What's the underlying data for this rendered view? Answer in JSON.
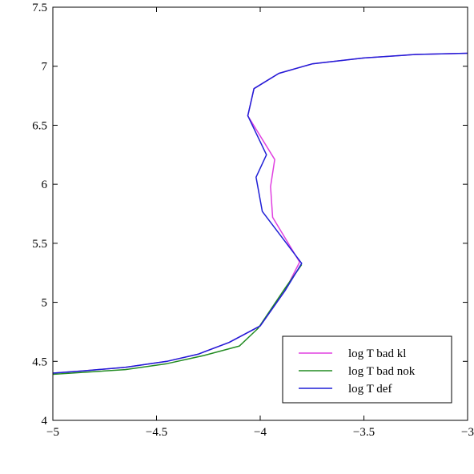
{
  "chart_data": {
    "type": "line",
    "title": "",
    "xlabel": "",
    "ylabel": "",
    "xlim": [
      -5,
      -3
    ],
    "ylim": [
      4,
      7.5
    ],
    "x_ticks": [
      -5,
      -4.5,
      -4,
      -3.5,
      -3
    ],
    "x_tick_labels": [
      "−5",
      "−4.5",
      "−4",
      "−3.5",
      "−3"
    ],
    "y_ticks": [
      4,
      4.5,
      5,
      5.5,
      6,
      6.5,
      7,
      7.5
    ],
    "y_tick_labels": [
      "4",
      "4.5",
      "5",
      "5.5",
      "6",
      "6.5",
      "7",
      "7.5"
    ],
    "grid": false,
    "legend_position": "bottom-right",
    "series": [
      {
        "name": "log T bad kl",
        "color": "#e040e0",
        "points": [
          [
            -5.0,
            4.4
          ],
          [
            -4.85,
            4.42
          ],
          [
            -4.65,
            4.45
          ],
          [
            -4.45,
            4.5
          ],
          [
            -4.3,
            4.56
          ],
          [
            -4.15,
            4.66
          ],
          [
            -4.0,
            4.8
          ],
          [
            -3.88,
            5.1
          ],
          [
            -3.81,
            5.34
          ],
          [
            -3.94,
            5.72
          ],
          [
            -3.95,
            5.98
          ],
          [
            -3.93,
            6.21
          ],
          [
            -4.06,
            6.58
          ],
          [
            -4.03,
            6.81
          ],
          [
            -3.91,
            6.94
          ],
          [
            -3.75,
            7.02
          ],
          [
            -3.5,
            7.07
          ],
          [
            -3.25,
            7.1
          ],
          [
            -3.0,
            7.11
          ]
        ]
      },
      {
        "name": "log T bad nok",
        "color": "#228b22",
        "points": [
          [
            -5.0,
            4.39
          ],
          [
            -4.65,
            4.43
          ],
          [
            -4.45,
            4.48
          ],
          [
            -4.27,
            4.55
          ],
          [
            -4.1,
            4.63
          ],
          [
            -4.01,
            4.78
          ],
          [
            -3.88,
            5.12
          ],
          [
            -3.8,
            5.32
          ]
        ]
      },
      {
        "name": "log T def",
        "color": "#1f1fd6",
        "points": [
          [
            -5.0,
            4.4
          ],
          [
            -4.85,
            4.42
          ],
          [
            -4.65,
            4.45
          ],
          [
            -4.45,
            4.5
          ],
          [
            -4.3,
            4.56
          ],
          [
            -4.15,
            4.66
          ],
          [
            -4.0,
            4.8
          ],
          [
            -3.88,
            5.1
          ],
          [
            -3.8,
            5.33
          ],
          [
            -3.99,
            5.77
          ],
          [
            -4.02,
            6.06
          ],
          [
            -3.97,
            6.25
          ],
          [
            -4.06,
            6.58
          ],
          [
            -4.03,
            6.81
          ],
          [
            -3.91,
            6.94
          ],
          [
            -3.75,
            7.02
          ],
          [
            -3.5,
            7.07
          ],
          [
            -3.25,
            7.1
          ],
          [
            -3.0,
            7.11
          ]
        ]
      }
    ]
  }
}
